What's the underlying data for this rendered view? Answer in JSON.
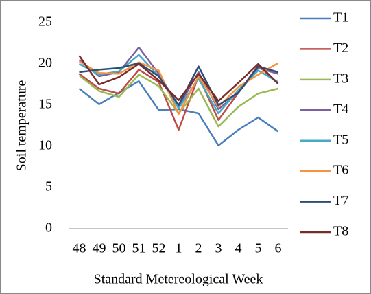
{
  "chart_data": {
    "type": "line",
    "x_label": "Standard Metereological Week",
    "y_label": "Soil temperature",
    "categories": [
      "48",
      "49",
      "50",
      "51",
      "52",
      "1",
      "2",
      "3",
      "4",
      "5",
      "6"
    ],
    "ylim": [
      0,
      25
    ],
    "yticks": [
      0,
      5,
      10,
      15,
      20,
      25
    ],
    "legend": "right",
    "series": [
      {
        "name": "T1",
        "color": "#4a7ebb",
        "values": [
          17,
          15.1,
          16.5,
          17.9,
          14.4,
          14.5,
          14,
          10.1,
          12,
          13.5,
          11.8
        ]
      },
      {
        "name": "T2",
        "color": "#be4b48",
        "values": [
          18.8,
          17,
          16.4,
          19.3,
          17.8,
          12,
          18.5,
          13.2,
          16.5,
          19.8,
          17.6
        ]
      },
      {
        "name": "T3",
        "color": "#98b954",
        "values": [
          18.6,
          16.7,
          16,
          18.7,
          17.3,
          14,
          17,
          12.4,
          14.8,
          16.4,
          17
        ]
      },
      {
        "name": "T4",
        "color": "#7d60a0",
        "values": [
          20.5,
          18.5,
          19,
          22,
          18.8,
          14.8,
          19,
          14.5,
          16.5,
          19.5,
          18.8
        ]
      },
      {
        "name": "T5",
        "color": "#46aac5",
        "values": [
          20,
          18.7,
          19.1,
          21.1,
          18.5,
          14.6,
          18.2,
          14,
          16.8,
          19.2,
          17.8
        ]
      },
      {
        "name": "T6",
        "color": "#f69240",
        "values": [
          20.3,
          18.9,
          18.8,
          20.2,
          19.2,
          13.9,
          18.5,
          14.8,
          17.2,
          18.7,
          20.1
        ]
      },
      {
        "name": "T7",
        "color": "#2c4d75",
        "values": [
          19,
          19.3,
          19.5,
          20.1,
          18.5,
          15,
          19.7,
          15,
          16.5,
          19.7,
          19
        ]
      },
      {
        "name": "T8",
        "color": "#772c2a",
        "values": [
          21,
          17.5,
          18.4,
          20,
          18,
          15.6,
          18.8,
          15.5,
          17.7,
          20,
          17.6
        ]
      }
    ]
  }
}
